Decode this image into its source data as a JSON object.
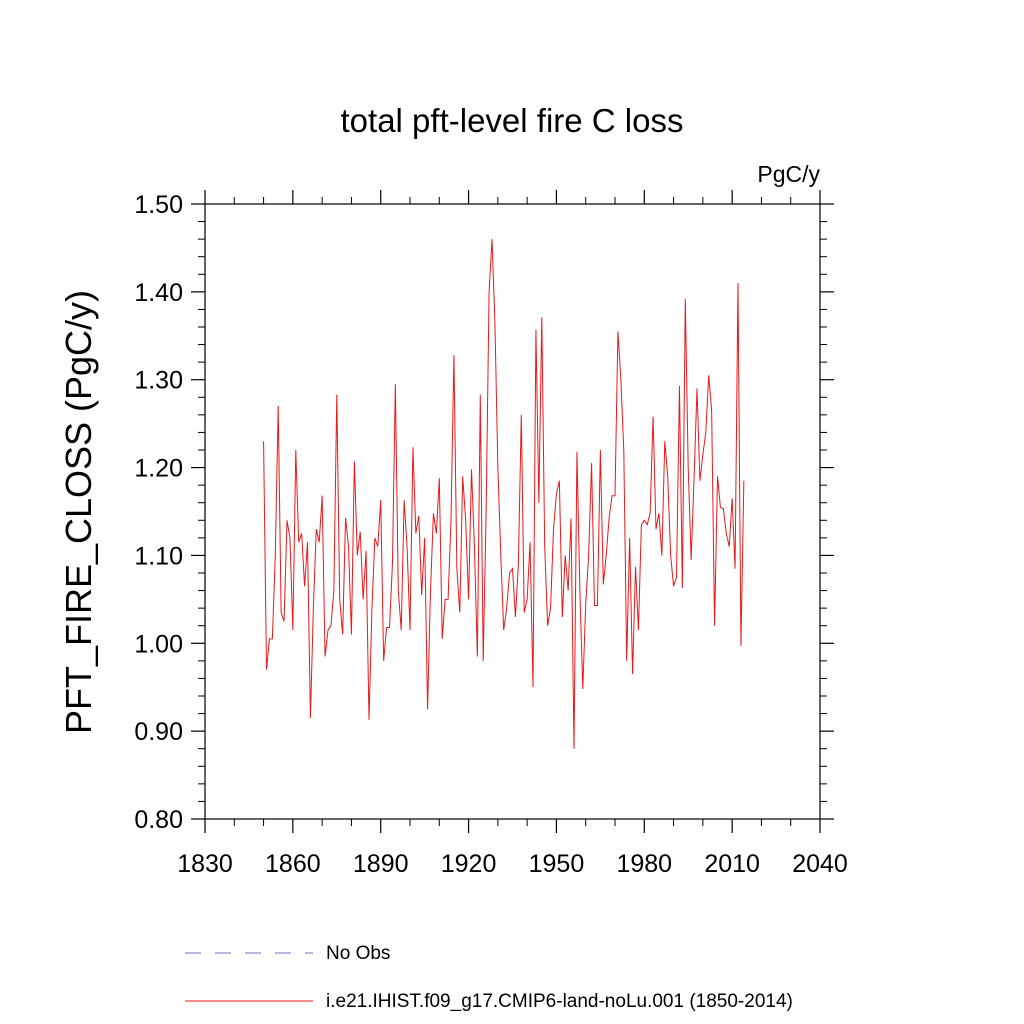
{
  "chart_data": {
    "type": "line",
    "title": "total pft-level fire C loss",
    "units": "PgC/y",
    "ylabel": "PFT_FIRE_CLOSS  (PgC/y)",
    "xlabel": "",
    "xlim": [
      1830,
      2040
    ],
    "ylim": [
      0.8,
      1.5
    ],
    "xticks": [
      1830,
      1860,
      1890,
      1920,
      1950,
      1980,
      2010,
      2040
    ],
    "yticks": [
      "0.80",
      "0.90",
      "1.00",
      "1.10",
      "1.20",
      "1.30",
      "1.40",
      "1.50"
    ],
    "grid": false,
    "legend_placement": "bottom",
    "legend": [
      {
        "label": "No Obs",
        "color": "#7b6fc0",
        "style": "dashed"
      },
      {
        "label": "i.e21.IHIST.f09_g17.CMIP6-land-noLu.001 (1850-2014)",
        "color": "#e8191c",
        "style": "solid"
      }
    ],
    "series": [
      {
        "name": "i.e21.IHIST.f09_g17.CMIP6-land-noLu.001 (1850-2014)",
        "color": "#e8191c",
        "x_start": 1850,
        "values": [
          1.23,
          0.97,
          1.005,
          1.005,
          1.1,
          1.27,
          1.035,
          1.025,
          1.14,
          1.12,
          1.015,
          1.22,
          1.115,
          1.125,
          1.065,
          1.115,
          0.915,
          1.04,
          1.13,
          1.115,
          1.168,
          0.985,
          1.015,
          1.02,
          1.06,
          1.283,
          1.05,
          1.01,
          1.143,
          1.11,
          1.01,
          1.207,
          1.1,
          1.127,
          1.05,
          1.105,
          0.913,
          1.04,
          1.12,
          1.11,
          1.163,
          0.98,
          1.018,
          1.018,
          1.09,
          1.295,
          1.06,
          1.015,
          1.163,
          1.11,
          1.015,
          1.223,
          1.125,
          1.145,
          1.055,
          1.12,
          0.925,
          1.06,
          1.148,
          1.125,
          1.188,
          1.005,
          1.05,
          1.05,
          1.14,
          1.328,
          1.085,
          1.035,
          1.19,
          1.14,
          1.05,
          1.198,
          1.11,
          0.985,
          1.283,
          0.98,
          1.15,
          1.4,
          1.46,
          1.365,
          1.2,
          1.1,
          1.015,
          1.04,
          1.08,
          1.085,
          1.03,
          1.09,
          1.26,
          1.035,
          1.05,
          1.115,
          0.95,
          1.357,
          1.16,
          1.371,
          1.11,
          1.02,
          1.04,
          1.13,
          1.17,
          1.185,
          1.03,
          1.1,
          1.06,
          1.142,
          0.88,
          1.218,
          1.06,
          0.948,
          1.045,
          1.1,
          1.205,
          1.043,
          1.043,
          1.22,
          1.067,
          1.1,
          1.143,
          1.168,
          1.168,
          1.355,
          1.3,
          1.22,
          0.98,
          1.12,
          0.965,
          1.087,
          1.015,
          1.135,
          1.14,
          1.135,
          1.148,
          1.258,
          1.13,
          1.148,
          1.1,
          1.23,
          1.19,
          1.1,
          1.065,
          1.075,
          1.293,
          1.063,
          1.392,
          1.2,
          1.095,
          1.188,
          1.29,
          1.185,
          1.215,
          1.24,
          1.305,
          1.265,
          1.02,
          1.19,
          1.155,
          1.153,
          1.125,
          1.11,
          1.165,
          1.085,
          1.41,
          0.997,
          1.185
        ]
      }
    ]
  }
}
